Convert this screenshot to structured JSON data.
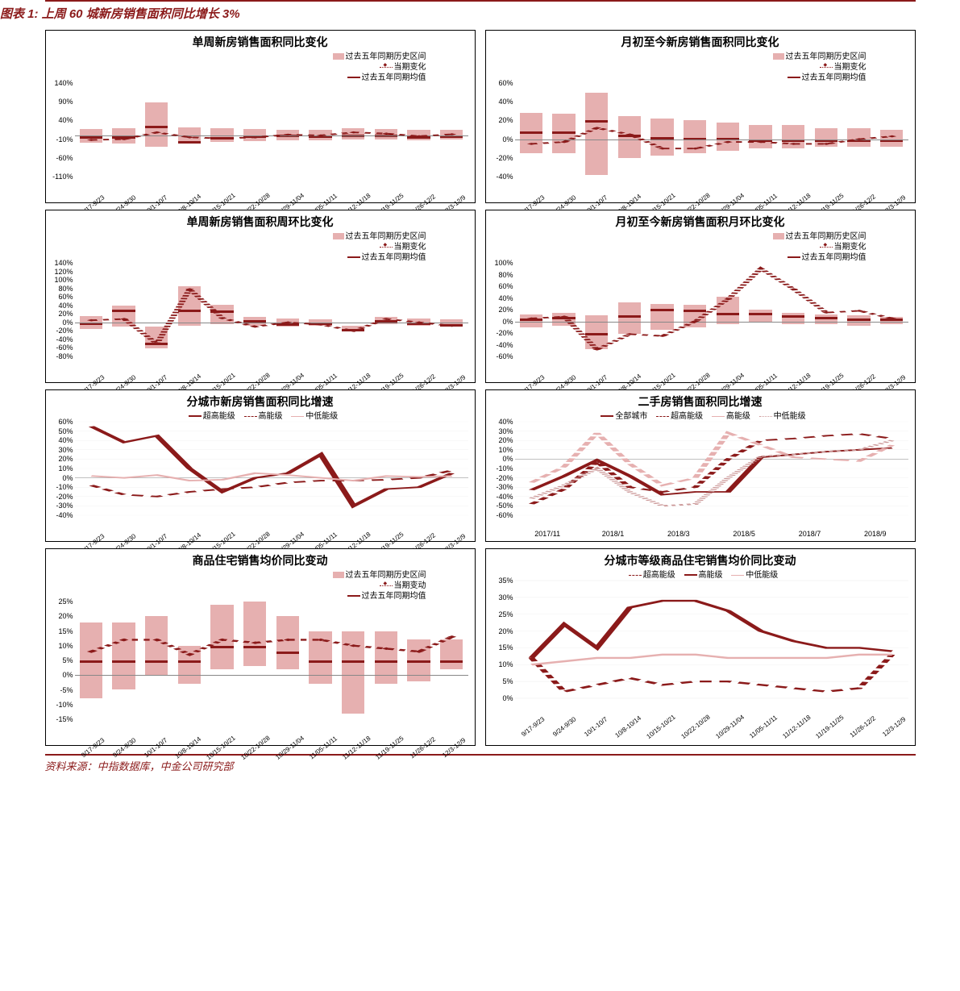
{
  "header_title": "图表 1: 上周 60 城新房销售面积同比增长 3%",
  "footer_text": "资料来源：中指数据库，中金公司研究部",
  "common": {
    "range_color": "#e6b0b0",
    "avg_color": "#8b1a1a",
    "line_color": "#8b1a1a",
    "dot_color": "#8b1a1a",
    "pink_color": "#e6b0b0",
    "dotpink_color": "#cc9999",
    "xcats_weeks": [
      "9/17-9/23",
      "9/24-9/30",
      "10/1-10/7",
      "10/8-10/14",
      "10/15-10/21",
      "10/22-10/28",
      "10/29-11/04",
      "11/05-11/11",
      "11/12-11/18",
      "11/19-11/25",
      "11/26-12/2",
      "12/3-12/9"
    ],
    "xcats_months": [
      "2017/11",
      "2018/1",
      "2018/3",
      "2018/5",
      "2018/7",
      "2018/9"
    ]
  },
  "legend_labels": {
    "hist_range": "过去五年同期历史区间",
    "current": "当期变化",
    "current2": "当期变动",
    "avg": "过去五年同期均值",
    "ultra_high": "超高能级",
    "high": "高能级",
    "mid_low": "中低能级",
    "all_city": "全部城市"
  },
  "charts": {
    "c1": {
      "title": "单周新房销售面积同比变化",
      "ymin": -110,
      "ymax": 140,
      "ystep": 50,
      "range_lo": [
        -20,
        -22,
        -30,
        -20,
        -18,
        -16,
        -14,
        -12,
        -10,
        -10,
        -12,
        -10
      ],
      "range_hi": [
        18,
        20,
        88,
        22,
        20,
        18,
        16,
        15,
        20,
        18,
        15,
        15
      ],
      "avg": [
        -2,
        -3,
        25,
        -15,
        -5,
        0,
        2,
        0,
        3,
        1,
        -2,
        0
      ],
      "current": [
        -12,
        -10,
        8,
        -5,
        -8,
        -5,
        2,
        0,
        8,
        5,
        -2,
        3
      ]
    },
    "c2": {
      "title": "月初至今新房销售面积同比变化",
      "ymin": -40,
      "ymax": 60,
      "ystep": 20,
      "range_lo": [
        -15,
        -15,
        -38,
        -20,
        -18,
        -15,
        -12,
        -10,
        -10,
        -8,
        -8,
        -8
      ],
      "range_hi": [
        28,
        27,
        50,
        25,
        22,
        20,
        18,
        15,
        15,
        12,
        12,
        10
      ],
      "avg": [
        8,
        8,
        20,
        5,
        2,
        1,
        1,
        0,
        0,
        0,
        0,
        0
      ],
      "current": [
        -5,
        -3,
        12,
        5,
        -10,
        -10,
        -3,
        -3,
        -5,
        -5,
        0,
        3
      ]
    },
    "c3": {
      "title": "单周新房销售面积周环比变化",
      "ymin": -80,
      "ymax": 140,
      "ystep": 20,
      "range_lo": [
        -15,
        -10,
        -62,
        -8,
        -5,
        -8,
        -10,
        -8,
        -22,
        -5,
        -8,
        -10
      ],
      "range_hi": [
        15,
        40,
        -10,
        85,
        42,
        12,
        10,
        8,
        -8,
        12,
        10,
        8
      ],
      "avg": [
        0,
        30,
        -48,
        30,
        28,
        5,
        -2,
        0,
        -15,
        5,
        0,
        -5
      ],
      "current": [
        5,
        8,
        -50,
        78,
        10,
        -10,
        0,
        -5,
        -20,
        8,
        0,
        -8
      ]
    },
    "c4": {
      "title": "月初至今新房销售面积月环比变化",
      "ymin": -60,
      "ymax": 100,
      "ystep": 20,
      "range_lo": [
        -10,
        -8,
        -48,
        -22,
        -15,
        -10,
        -5,
        0,
        -5,
        -5,
        -8,
        -5
      ],
      "range_hi": [
        12,
        15,
        10,
        32,
        30,
        28,
        42,
        20,
        15,
        12,
        10,
        8
      ],
      "avg": [
        5,
        8,
        -20,
        10,
        22,
        20,
        15,
        15,
        10,
        8,
        5,
        5
      ],
      "current": [
        5,
        8,
        -48,
        -22,
        -25,
        0,
        38,
        90,
        55,
        15,
        18,
        5
      ]
    },
    "c5": {
      "title": "分城市新房销售面积同比增速",
      "ymin": -40,
      "ymax": 60,
      "ystep": 10,
      "series": {
        "ultra_high": [
          55,
          38,
          45,
          10,
          -15,
          0,
          5,
          25,
          -30,
          -12,
          -10,
          5
        ],
        "high": [
          -8,
          -18,
          -20,
          -15,
          -12,
          -10,
          -5,
          -3,
          -3,
          -2,
          0,
          8
        ],
        "mid_low": [
          2,
          0,
          3,
          -3,
          -2,
          5,
          3,
          0,
          -3,
          2,
          1,
          2
        ]
      }
    },
    "c6": {
      "title": "二手房销售面积同比增速",
      "ymin": -60,
      "ymax": 40,
      "ystep": 10,
      "xn": 11,
      "series": {
        "all_city": [
          -33,
          -18,
          -1,
          -18,
          -38,
          -35,
          -35,
          2,
          5,
          8,
          10,
          12
        ],
        "ultra_high": [
          -48,
          -32,
          -3,
          -30,
          -35,
          -30,
          0,
          20,
          22,
          25,
          27,
          22
        ],
        "high": [
          -25,
          -8,
          28,
          -5,
          -28,
          -20,
          28,
          15,
          2,
          0,
          -2,
          15
        ],
        "mid_low": [
          -42,
          -28,
          -10,
          -35,
          -50,
          -48,
          -20,
          3,
          5,
          8,
          10,
          20
        ]
      }
    },
    "c7": {
      "title": "商品住宅销售均价同比变动",
      "ymin": -15,
      "ymax": 25,
      "ystep": 5,
      "range_lo": [
        -8,
        -5,
        0,
        -3,
        2,
        3,
        2,
        -3,
        -13,
        -3,
        -2,
        2
      ],
      "range_hi": [
        18,
        18,
        20,
        10,
        24,
        25,
        20,
        15,
        15,
        15,
        12,
        12
      ],
      "avg": [
        5,
        5,
        5,
        5,
        10,
        10,
        8,
        5,
        5,
        5,
        5,
        5
      ],
      "current": [
        8,
        12,
        12,
        7,
        12,
        11,
        12,
        12,
        10,
        9,
        8,
        13
      ]
    },
    "c8": {
      "title": "分城市等级商品住宅销售均价同比变动",
      "ymin": 0,
      "ymax": 35,
      "ystep": 5,
      "series": {
        "ultra_high": [
          12,
          2,
          4,
          6,
          4,
          5,
          5,
          4,
          3,
          2,
          3,
          13
        ],
        "high": [
          12,
          22,
          15,
          27,
          29,
          29,
          26,
          20,
          17,
          15,
          15,
          14
        ],
        "mid_low": [
          10,
          11,
          12,
          12,
          13,
          13,
          12,
          12,
          12,
          12,
          13,
          13
        ]
      }
    }
  }
}
